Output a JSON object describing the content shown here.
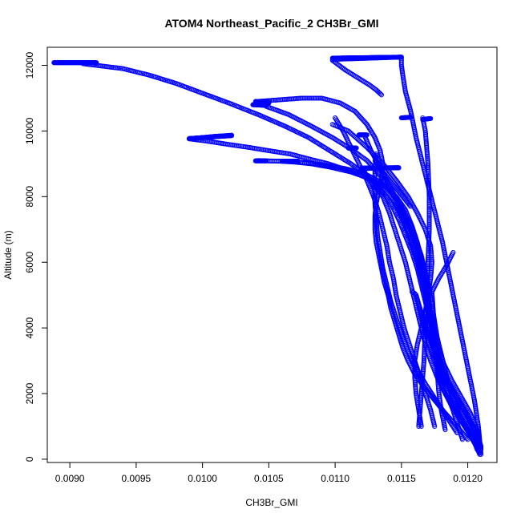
{
  "chart_data": {
    "type": "scatter",
    "title": "ATOM4 Northeast_Pacific_2 CH3Br_GMI",
    "xlabel": "CH3Br_GMI",
    "ylabel": "Altitude (m)",
    "xlim": [
      0.00883,
      0.01222
    ],
    "ylim": [
      -100,
      12550
    ],
    "x_ticks": [
      "0.0090",
      "0.0095",
      "0.0100",
      "0.0105",
      "0.0110",
      "0.0115",
      "0.0120"
    ],
    "x_tick_values": [
      0.009,
      0.0095,
      0.01,
      0.0105,
      0.011,
      0.0115,
      0.012
    ],
    "y_ticks": [
      "0",
      "2000",
      "4000",
      "6000",
      "8000",
      "10000",
      "12000"
    ],
    "y_tick_values": [
      0,
      2000,
      4000,
      6000,
      8000,
      10000,
      12000
    ],
    "grid": false,
    "marker": "open-circle",
    "color": "#0000ff",
    "series": [
      {
        "x": [
          0.01209,
          0.01205,
          0.01198,
          0.0119,
          0.01183,
          0.01178,
          0.01176,
          0.01174,
          0.01171,
          0.0117,
          0.01168,
          0.01165,
          0.01162,
          0.01158,
          0.01154,
          0.0115,
          0.01146,
          0.0114,
          0.01132,
          0.01122,
          0.0111,
          0.01095,
          0.0108,
          0.01066,
          0.0105,
          0.01035,
          0.01018,
          0.01002,
          0.0099
        ],
        "y": [
          150,
          500,
          1000,
          1500,
          2000,
          2500,
          3000,
          3500,
          4000,
          4500,
          5000,
          5500,
          6000,
          6500,
          7000,
          7400,
          7800,
          8100,
          8400,
          8600,
          8800,
          9000,
          9150,
          9300,
          9400,
          9500,
          9600,
          9700,
          9760
        ]
      },
      {
        "x": [
          0.0099,
          0.01,
          0.0101,
          0.01022
        ],
        "y": [
          9760,
          9800,
          9840,
          9870
        ]
      },
      {
        "x": [
          0.01209,
          0.01204,
          0.01196,
          0.01188,
          0.01182,
          0.01179,
          0.01177,
          0.01175,
          0.01173,
          0.01171,
          0.01169,
          0.01167,
          0.01165,
          0.01162,
          0.01158,
          0.01153,
          0.01146,
          0.01138,
          0.01126,
          0.01112,
          0.01096,
          0.01082,
          0.0107,
          0.01058,
          0.01048,
          0.01042
        ],
        "y": [
          200,
          600,
          1100,
          1600,
          2100,
          2600,
          3100,
          3600,
          4100,
          4600,
          5100,
          5600,
          6100,
          6600,
          7100,
          7600,
          8000,
          8300,
          8550,
          8750,
          8900,
          9000,
          9050,
          9080,
          9090,
          9100
        ]
      },
      {
        "x": [
          0.01208,
          0.01203,
          0.01196,
          0.0119,
          0.01186,
          0.01183,
          0.0118,
          0.01177,
          0.01175,
          0.01173,
          0.01171,
          0.01168,
          0.01165,
          0.01161,
          0.01156,
          0.0115,
          0.01143,
          0.01134,
          0.01122,
          0.01108,
          0.01094,
          0.01081,
          0.0107,
          0.01062
        ],
        "y": [
          250,
          700,
          1200,
          1700,
          2200,
          2700,
          3200,
          3700,
          4200,
          4700,
          5200,
          5700,
          6200,
          6700,
          7200,
          7700,
          8100,
          8450,
          8700,
          8850,
          8950,
          9020,
          9060,
          9080
        ]
      },
      {
        "x": [
          0.0121,
          0.01206,
          0.012,
          0.01192,
          0.01186,
          0.01181,
          0.01177,
          0.01174,
          0.01171,
          0.01168,
          0.01165,
          0.01162,
          0.01158,
          0.01153,
          0.01148,
          0.01142,
          0.01135,
          0.01125,
          0.01112,
          0.01096,
          0.0108,
          0.01062,
          0.01042,
          0.0102,
          0.01,
          0.0098,
          0.0096,
          0.0094,
          0.0092,
          0.0091
        ],
        "y": [
          300,
          800,
          1300,
          1800,
          2300,
          2800,
          3300,
          3800,
          4300,
          4800,
          5300,
          5800,
          6300,
          6800,
          7300,
          7800,
          8200,
          8600,
          9000,
          9400,
          9800,
          10150,
          10500,
          10850,
          11150,
          11450,
          11700,
          11900,
          12000,
          12050
        ]
      },
      {
        "x": [
          0.0121,
          0.01207,
          0.01202,
          0.01195,
          0.01188,
          0.01182,
          0.01178,
          0.01175,
          0.01172,
          0.01169,
          0.01166,
          0.01163,
          0.0116,
          0.01156,
          0.01151,
          0.01146,
          0.0114,
          0.01133,
          0.01124,
          0.01112,
          0.01098,
          0.01082,
          0.01065,
          0.01048
        ],
        "y": [
          350,
          900,
          1400,
          1900,
          2400,
          2900,
          3400,
          3900,
          4400,
          4900,
          5400,
          5900,
          6400,
          6900,
          7400,
          7900,
          8300,
          8700,
          9100,
          9450,
          9800,
          10150,
          10500,
          10750
        ]
      },
      {
        "x": [
          0.01042,
          0.01045,
          0.01048,
          0.0105
        ],
        "y": [
          10800,
          10860,
          10880,
          10900
        ]
      },
      {
        "x": [
          0.0121,
          0.01205,
          0.01198,
          0.0119,
          0.01183,
          0.01178,
          0.01175,
          0.01173,
          0.01171,
          0.01169,
          0.01167,
          0.01164,
          0.01161,
          0.01157,
          0.01152,
          0.01146,
          0.0114,
          0.01134,
          0.01127,
          0.01122
        ],
        "y": [
          400,
          950,
          1450,
          1950,
          2450,
          2950,
          3450,
          3950,
          4450,
          4950,
          5450,
          5950,
          6450,
          6950,
          7450,
          7950,
          8400,
          8900,
          9400,
          9880
        ]
      },
      {
        "x": [
          0.01122,
          0.01118
        ],
        "y": [
          9880,
          9880
        ]
      },
      {
        "x": [
          0.01115,
          0.01112,
          0.0111
        ],
        "y": [
          9480,
          9480,
          9480
        ]
      },
      {
        "x": [
          0.012,
          0.01192,
          0.01183,
          0.01175,
          0.01167,
          0.0116,
          0.01155,
          0.01151,
          0.01148,
          0.01145,
          0.01142,
          0.0114,
          0.01137,
          0.01135,
          0.01133,
          0.01131,
          0.0113,
          0.0113,
          0.01131,
          0.01133,
          0.01135,
          0.01136,
          0.01134,
          0.0113,
          0.01124,
          0.01115,
          0.01104,
          0.0109,
          0.01075,
          0.01058,
          0.01042
        ],
        "y": [
          600,
          1000,
          1400,
          1800,
          2200,
          2600,
          3000,
          3400,
          3800,
          4200,
          4600,
          5000,
          5400,
          5800,
          6200,
          6600,
          7000,
          7400,
          7800,
          8200,
          8600,
          9000,
          9400,
          9800,
          10200,
          10600,
          10850,
          11000,
          11000,
          10950,
          10900
        ]
      },
      {
        "x": [
          0.01165,
          0.01163,
          0.01161,
          0.0116,
          0.0116,
          0.01162,
          0.01165,
          0.01168,
          0.0117,
          0.01172,
          0.01173,
          0.01172,
          0.01168,
          0.01162,
          0.01155,
          0.01146,
          0.01136,
          0.01124,
          0.0111,
          0.01098
        ],
        "y": [
          1000,
          1500,
          2000,
          2500,
          3000,
          3500,
          4000,
          4500,
          5000,
          5500,
          6000,
          6500,
          7000,
          7500,
          8000,
          8500,
          9000,
          9500,
          10000,
          10200
        ]
      },
      {
        "x": [
          0.01163,
          0.01165,
          0.01167,
          0.01168,
          0.01169,
          0.0117,
          0.01171,
          0.01171,
          0.0117,
          0.01168,
          0.01166
        ],
        "y": [
          1000,
          2000,
          3000,
          4000,
          5000,
          6000,
          7000,
          8000,
          9000,
          10000,
          10400
        ]
      },
      {
        "x": [
          0.01205,
          0.01198,
          0.0119,
          0.01183,
          0.01177,
          0.01172,
          0.01168,
          0.01165,
          0.01162,
          0.01159,
          0.01156,
          0.01153,
          0.01149,
          0.01145,
          0.01141,
          0.01136,
          0.01132,
          0.01128,
          0.01124,
          0.01121
        ],
        "y": [
          500,
          1000,
          1500,
          2000,
          2500,
          3000,
          3500,
          4000,
          4500,
          5000,
          5500,
          6000,
          6500,
          7000,
          7500,
          8000,
          8200,
          8400,
          8600,
          8850
        ]
      },
      {
        "x": [
          0.01121,
          0.01126,
          0.01132,
          0.01138,
          0.01144,
          0.01148
        ],
        "y": [
          8850,
          8860,
          8870,
          8880,
          8880,
          8880
        ]
      },
      {
        "x": [
          0.01192,
          0.01184,
          0.01176,
          0.01168,
          0.01161,
          0.01155,
          0.0115,
          0.01146,
          0.01142,
          0.01139,
          0.01136,
          0.01134,
          0.01132,
          0.01131,
          0.0113,
          0.0113,
          0.0113,
          0.01131
        ],
        "y": [
          800,
          1300,
          1800,
          2300,
          2800,
          3300,
          3800,
          4300,
          4800,
          5300,
          5800,
          6300,
          6800,
          7300,
          7800,
          8300,
          8800,
          9300
        ]
      },
      {
        "x": [
          0.01175,
          0.01172,
          0.01168,
          0.01164,
          0.0116,
          0.01156,
          0.01152,
          0.01149,
          0.01146,
          0.01144,
          0.01141,
          0.01139,
          0.01136,
          0.01133,
          0.01129,
          0.01124,
          0.01118,
          0.01112,
          0.01106,
          0.011
        ],
        "y": [
          1000,
          1500,
          2000,
          2500,
          3000,
          3500,
          4000,
          4500,
          5000,
          5500,
          6000,
          6500,
          7000,
          7500,
          8000,
          8500,
          9000,
          9500,
          10000,
          10400
        ]
      },
      {
        "x": [
          0.0121,
          0.01208,
          0.01205,
          0.01201,
          0.01197,
          0.01193,
          0.01189,
          0.01185,
          0.01181,
          0.01176,
          0.01171,
          0.01166,
          0.01161,
          0.01157,
          0.01153,
          0.01151,
          0.0115,
          0.0115
        ],
        "y": [
          150,
          1000,
          1800,
          2600,
          3400,
          4200,
          5000,
          5800,
          6600,
          7400,
          8200,
          9000,
          9800,
          10600,
          11200,
          11700,
          12000,
          12200
        ]
      },
      {
        "x": [
          0.0115,
          0.01135,
          0.0112,
          0.01105,
          0.01098
        ],
        "y": [
          12250,
          12230,
          12210,
          12190,
          12180
        ]
      },
      {
        "x": [
          0.01098,
          0.01103,
          0.01108,
          0.01114,
          0.0112,
          0.01126,
          0.01131,
          0.01135
        ],
        "y": [
          12150,
          12000,
          11850,
          11700,
          11550,
          11400,
          11250,
          11100
        ]
      },
      {
        "x": [
          0.01207,
          0.01204,
          0.01199,
          0.01194,
          0.01189,
          0.01184,
          0.01179,
          0.01175,
          0.01171,
          0.01168,
          0.01165,
          0.01163,
          0.01161,
          0.0116,
          0.01158
        ],
        "y": [
          300,
          700,
          1100,
          1500,
          1900,
          2300,
          2700,
          3100,
          3500,
          3900,
          4300,
          4700,
          5000,
          5050,
          5100
        ]
      },
      {
        "x": [
          0.01196,
          0.01192,
          0.01188,
          0.01184,
          0.0118,
          0.01176,
          0.01172,
          0.01168,
          0.01164,
          0.01161
        ],
        "y": [
          600,
          1100,
          1600,
          2100,
          2600,
          3100,
          3600,
          4100,
          4600,
          5000
        ]
      },
      {
        "x": [
          0.01183,
          0.0118,
          0.01178,
          0.01177,
          0.01176,
          0.01175,
          0.01174,
          0.01173
        ],
        "y": [
          900,
          1500,
          2100,
          2700,
          3300,
          3900,
          4500,
          5100
        ]
      },
      {
        "x": [
          0.01173,
          0.01178,
          0.01184,
          0.01189
        ],
        "y": [
          5100,
          5500,
          5900,
          6300
        ]
      },
      {
        "x": [
          0.01157,
          0.01153,
          0.01149,
          0.01145,
          0.01141,
          0.01137,
          0.01133,
          0.0113
        ],
        "y": [
          7700,
          7900,
          8100,
          8300,
          8500,
          8700,
          8900,
          9100
        ]
      }
    ],
    "segments": [
      {
        "x": [
          0.00888,
          0.0092
        ],
        "y": [
          12080,
          12080
        ]
      },
      {
        "x": [
          0.01098,
          0.0115
        ],
        "y": [
          12220,
          12250
        ]
      },
      {
        "x": [
          0.0099,
          0.01022
        ],
        "y": [
          9770,
          9860
        ]
      },
      {
        "x": [
          0.0104,
          0.0105
        ],
        "y": [
          10900,
          10850
        ]
      },
      {
        "x": [
          0.01038,
          0.01048
        ],
        "y": [
          10800,
          10780
        ]
      },
      {
        "x": [
          0.0104,
          0.01048
        ],
        "y": [
          9090,
          9090
        ]
      },
      {
        "x": [
          0.0106,
          0.01072
        ],
        "y": [
          9080,
          9080
        ]
      },
      {
        "x": [
          0.01118,
          0.01124
        ],
        "y": [
          9880,
          9880
        ]
      },
      {
        "x": [
          0.0111,
          0.01116
        ],
        "y": [
          9480,
          9480
        ]
      },
      {
        "x": [
          0.0112,
          0.01148
        ],
        "y": [
          8870,
          8880
        ]
      },
      {
        "x": [
          0.0115,
          0.01157
        ],
        "y": [
          10400,
          10420
        ]
      },
      {
        "x": [
          0.01166,
          0.01172
        ],
        "y": [
          10350,
          10380
        ]
      }
    ]
  }
}
